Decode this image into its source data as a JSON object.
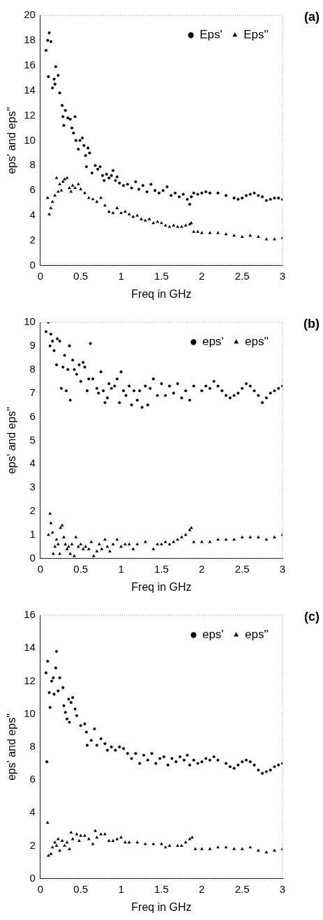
{
  "chart_data": [
    {
      "type": "scatter",
      "annotations": [
        "(a)"
      ],
      "xlabel": "Freq in GHz",
      "ylabel": "eps' and eps''",
      "xlim": [
        0,
        3
      ],
      "xticks": [
        0,
        0.5,
        1,
        1.5,
        2,
        2.5,
        3
      ],
      "ylim": [
        0,
        20
      ],
      "yticks": [
        0,
        2,
        4,
        6,
        8,
        10,
        12,
        14,
        16,
        18,
        20
      ],
      "grid": false,
      "legend": "top right",
      "series": [
        {
          "name": "Eps'",
          "color": "#000000",
          "marker": "circle",
          "x": [
            0.07,
            0.09,
            0.11,
            0.13,
            0.1,
            0.15,
            0.17,
            0.18,
            0.19,
            0.22,
            0.24,
            0.27,
            0.28,
            0.29,
            0.31,
            0.34,
            0.37,
            0.39,
            0.41,
            0.43,
            0.44,
            0.47,
            0.49,
            0.52,
            0.54,
            0.56,
            0.59,
            0.61,
            0.57,
            0.64,
            0.68,
            0.71,
            0.74,
            0.77,
            0.79,
            0.82,
            0.85,
            0.88,
            0.9,
            0.93,
            0.95,
            0.98,
            1.03,
            1.08,
            1.13,
            1.18,
            1.22,
            1.27,
            1.32,
            1.37,
            1.42,
            1.47,
            1.52,
            1.57,
            1.62,
            1.67,
            1.72,
            1.77,
            1.82,
            1.85,
            1.87,
            1.9,
            1.95,
            2.0,
            2.05,
            2.1,
            2.2,
            2.3,
            2.4,
            2.45,
            2.5,
            2.55,
            2.6,
            2.65,
            2.7,
            2.75,
            2.8,
            2.85,
            2.9,
            2.95,
            3.0
          ],
          "values": [
            17.2,
            18.0,
            18.6,
            17.9,
            15.1,
            14.2,
            14.9,
            14.5,
            15.9,
            15.2,
            13.8,
            12.8,
            11.9,
            11.2,
            12.4,
            11.8,
            11.7,
            11.0,
            10.6,
            11.9,
            10.0,
            9.3,
            10.0,
            10.2,
            9.6,
            8.8,
            9.4,
            9.0,
            7.9,
            7.4,
            8.0,
            7.7,
            7.9,
            7.2,
            6.8,
            7.3,
            7.0,
            7.2,
            7.6,
            6.8,
            7.1,
            6.6,
            6.4,
            6.5,
            6.2,
            6.7,
            6.1,
            6.4,
            5.9,
            6.5,
            6.0,
            5.8,
            6.0,
            6.3,
            5.6,
            5.8,
            5.5,
            5.7,
            5.3,
            4.9,
            5.5,
            5.8,
            5.7,
            5.8,
            5.9,
            5.8,
            5.8,
            5.6,
            5.4,
            5.3,
            5.4,
            5.6,
            5.7,
            5.8,
            5.6,
            5.5,
            5.2,
            5.3,
            5.4,
            5.4,
            5.3
          ]
        },
        {
          "name": "Eps''",
          "color": "#000000",
          "marker": "triangle",
          "x": [
            0.09,
            0.11,
            0.13,
            0.15,
            0.18,
            0.2,
            0.22,
            0.24,
            0.26,
            0.28,
            0.3,
            0.33,
            0.36,
            0.38,
            0.4,
            0.43,
            0.47,
            0.5,
            0.55,
            0.6,
            0.65,
            0.7,
            0.75,
            0.8,
            0.85,
            0.9,
            0.95,
            1.0,
            1.05,
            1.1,
            1.15,
            1.2,
            1.25,
            1.3,
            1.35,
            1.4,
            1.45,
            1.5,
            1.55,
            1.6,
            1.65,
            1.7,
            1.75,
            1.8,
            1.85,
            1.87,
            1.9,
            1.95,
            2.0,
            2.1,
            2.2,
            2.3,
            2.4,
            2.5,
            2.6,
            2.7,
            2.8,
            2.9,
            3.0
          ],
          "values": [
            5.4,
            4.1,
            4.6,
            5.1,
            5.6,
            7.0,
            5.9,
            6.5,
            6.0,
            6.7,
            6.9,
            7.0,
            6.2,
            5.9,
            6.4,
            6.2,
            6.5,
            6.1,
            5.8,
            5.4,
            5.3,
            5.1,
            5.4,
            4.8,
            4.3,
            4.2,
            4.6,
            4.2,
            4.3,
            4.1,
            3.9,
            4.0,
            3.7,
            3.6,
            3.7,
            3.4,
            3.5,
            3.4,
            3.2,
            3.1,
            3.2,
            3.1,
            3.1,
            3.2,
            3.3,
            3.4,
            2.7,
            2.7,
            2.6,
            2.6,
            2.6,
            2.5,
            2.4,
            2.3,
            2.4,
            2.3,
            2.1,
            2.1,
            2.2
          ]
        }
      ]
    },
    {
      "type": "scatter",
      "annotations": [
        "(b)"
      ],
      "xlabel": "Freq in GHz",
      "ylabel": "eps' and eps''",
      "xlim": [
        0,
        3
      ],
      "xticks": [
        0,
        0.5,
        1,
        1.5,
        2,
        2.5,
        3
      ],
      "ylim": [
        0,
        10
      ],
      "yticks": [
        0,
        1,
        2,
        3,
        4,
        5,
        6,
        7,
        8,
        9,
        10
      ],
      "grid": false,
      "legend": "top right",
      "series": [
        {
          "name": "eps'",
          "color": "#000000",
          "marker": "circle",
          "x": [
            0.07,
            0.1,
            0.12,
            0.13,
            0.15,
            0.17,
            0.2,
            0.21,
            0.24,
            0.26,
            0.28,
            0.3,
            0.32,
            0.34,
            0.36,
            0.37,
            0.4,
            0.42,
            0.45,
            0.48,
            0.5,
            0.53,
            0.55,
            0.58,
            0.6,
            0.62,
            0.65,
            0.7,
            0.72,
            0.75,
            0.78,
            0.8,
            0.83,
            0.85,
            0.88,
            0.92,
            0.95,
            0.98,
            1.0,
            1.03,
            1.06,
            1.1,
            1.13,
            1.16,
            1.2,
            1.23,
            1.26,
            1.3,
            1.33,
            1.36,
            1.4,
            1.45,
            1.5,
            1.55,
            1.6,
            1.65,
            1.7,
            1.75,
            1.8,
            1.85,
            1.9,
            2.0,
            2.05,
            2.1,
            2.15,
            2.2,
            2.25,
            2.3,
            2.35,
            2.4,
            2.45,
            2.5,
            2.55,
            2.6,
            2.65,
            2.7,
            2.75,
            2.8,
            2.85,
            2.9,
            2.95,
            3.0
          ],
          "values": [
            9.6,
            10.0,
            9.0,
            9.5,
            9.2,
            8.8,
            8.2,
            9.3,
            9.2,
            7.2,
            8.1,
            8.6,
            7.1,
            8.0,
            9.0,
            6.7,
            8.4,
            8.0,
            7.8,
            8.2,
            7.5,
            8.3,
            8.1,
            7.1,
            7.6,
            9.1,
            7.6,
            7.2,
            7.0,
            7.9,
            7.1,
            6.6,
            6.8,
            7.4,
            7.2,
            7.3,
            7.6,
            6.6,
            7.9,
            7.1,
            6.9,
            7.3,
            6.5,
            7.1,
            6.7,
            7.1,
            6.4,
            7.3,
            6.5,
            7.2,
            7.6,
            6.9,
            7.4,
            6.9,
            7.3,
            7.0,
            7.4,
            6.8,
            7.1,
            6.7,
            7.3,
            7.1,
            7.3,
            7.2,
            7.5,
            7.3,
            7.1,
            6.9,
            6.8,
            6.9,
            7.0,
            7.2,
            7.4,
            7.3,
            7.1,
            6.9,
            6.6,
            6.8,
            7.0,
            7.1,
            7.2,
            7.3
          ]
        },
        {
          "name": "eps''",
          "color": "#000000",
          "marker": "triangle",
          "x": [
            0.1,
            0.12,
            0.13,
            0.15,
            0.16,
            0.18,
            0.2,
            0.22,
            0.24,
            0.25,
            0.27,
            0.29,
            0.31,
            0.33,
            0.35,
            0.37,
            0.39,
            0.42,
            0.44,
            0.47,
            0.5,
            0.53,
            0.56,
            0.6,
            0.63,
            0.66,
            0.7,
            0.73,
            0.76,
            0.8,
            0.83,
            0.86,
            0.9,
            0.95,
            1.0,
            1.05,
            1.1,
            1.15,
            1.2,
            1.3,
            1.4,
            1.45,
            1.5,
            1.55,
            1.6,
            1.65,
            1.7,
            1.75,
            1.8,
            1.85,
            1.87,
            1.9,
            2.0,
            2.1,
            2.2,
            2.3,
            2.4,
            2.5,
            2.6,
            2.7,
            2.8,
            2.9,
            3.0
          ],
          "values": [
            1.0,
            1.9,
            1.5,
            1.1,
            0.2,
            0.5,
            0.8,
            0.6,
            0.2,
            1.3,
            1.4,
            0.9,
            0.6,
            0.4,
            0.5,
            0.2,
            0.6,
            0.1,
            0.9,
            0.5,
            0.6,
            0.4,
            0.5,
            0.4,
            0.7,
            0.1,
            0.3,
            0.6,
            0.4,
            0.8,
            0.5,
            0.3,
            0.6,
            0.8,
            0.5,
            0.6,
            0.6,
            0.4,
            0.6,
            0.7,
            0.4,
            0.6,
            0.6,
            0.7,
            0.6,
            0.7,
            0.8,
            0.9,
            1.0,
            1.2,
            1.3,
            0.7,
            0.7,
            0.7,
            0.8,
            0.8,
            0.8,
            0.9,
            0.9,
            0.9,
            0.8,
            0.9,
            1.0
          ]
        }
      ]
    },
    {
      "type": "scatter",
      "annotations": [
        "(c)"
      ],
      "xlabel": "Freq in GHz",
      "ylabel": "eps' and eps''",
      "xlim": [
        0,
        3
      ],
      "xticks": [
        0,
        0.5,
        1,
        1.5,
        2,
        2.5,
        3
      ],
      "ylim": [
        0,
        16
      ],
      "yticks": [
        0,
        2,
        4,
        6,
        8,
        10,
        12,
        14,
        16
      ],
      "grid": false,
      "legend": "top right",
      "series": [
        {
          "name": "eps'",
          "color": "#000000",
          "marker": "circle",
          "x": [
            0.07,
            0.08,
            0.09,
            0.11,
            0.12,
            0.14,
            0.16,
            0.17,
            0.19,
            0.2,
            0.22,
            0.24,
            0.28,
            0.29,
            0.31,
            0.33,
            0.35,
            0.36,
            0.38,
            0.4,
            0.43,
            0.45,
            0.5,
            0.55,
            0.57,
            0.58,
            0.63,
            0.67,
            0.7,
            0.75,
            0.8,
            0.83,
            0.88,
            0.93,
            0.98,
            1.03,
            1.08,
            1.13,
            1.18,
            1.23,
            1.28,
            1.33,
            1.38,
            1.43,
            1.48,
            1.53,
            1.58,
            1.63,
            1.68,
            1.73,
            1.78,
            1.82,
            1.85,
            1.9,
            1.95,
            2.0,
            2.05,
            2.1,
            2.15,
            2.2,
            2.3,
            2.35,
            2.4,
            2.45,
            2.5,
            2.55,
            2.6,
            2.65,
            2.7,
            2.75,
            2.8,
            2.85,
            2.9,
            2.95,
            3.0
          ],
          "values": [
            12.5,
            7.1,
            13.2,
            11.3,
            10.4,
            12.0,
            12.2,
            11.2,
            12.8,
            13.8,
            11.4,
            12.2,
            11.6,
            10.5,
            10.1,
            9.7,
            10.9,
            9.5,
            10.7,
            11.0,
            10.3,
            9.9,
            9.3,
            9.4,
            8.9,
            8.1,
            8.4,
            9.1,
            8.1,
            8.5,
            8.2,
            7.8,
            8.0,
            7.8,
            8.0,
            7.9,
            7.6,
            7.3,
            7.6,
            7.0,
            7.5,
            7.2,
            7.6,
            7.0,
            7.3,
            7.4,
            6.9,
            7.3,
            7.1,
            7.4,
            7.2,
            7.5,
            6.9,
            7.2,
            7.0,
            7.1,
            7.3,
            7.2,
            7.4,
            7.2,
            7.0,
            6.8,
            6.7,
            6.9,
            7.1,
            7.2,
            7.1,
            6.9,
            6.6,
            6.4,
            6.5,
            6.6,
            6.8,
            6.9,
            7.0
          ]
        },
        {
          "name": "eps''",
          "color": "#000000",
          "marker": "triangle",
          "x": [
            0.09,
            0.1,
            0.13,
            0.15,
            0.18,
            0.2,
            0.22,
            0.24,
            0.27,
            0.3,
            0.33,
            0.36,
            0.38,
            0.4,
            0.45,
            0.48,
            0.5,
            0.55,
            0.6,
            0.65,
            0.68,
            0.7,
            0.75,
            0.8,
            0.85,
            0.9,
            0.95,
            1.0,
            1.05,
            1.1,
            1.2,
            1.3,
            1.4,
            1.5,
            1.55,
            1.6,
            1.7,
            1.75,
            1.8,
            1.85,
            1.88,
            1.92,
            2.0,
            2.1,
            2.2,
            2.3,
            2.4,
            2.5,
            2.6,
            2.7,
            2.8,
            2.9,
            3.0
          ],
          "values": [
            3.4,
            1.4,
            1.5,
            1.9,
            2.2,
            2.0,
            2.4,
            1.7,
            2.3,
            2.0,
            2.2,
            1.8,
            2.8,
            2.4,
            2.7,
            2.3,
            2.6,
            2.6,
            2.4,
            2.1,
            2.9,
            2.5,
            2.7,
            2.7,
            2.3,
            2.3,
            2.4,
            2.5,
            2.2,
            2.2,
            2.2,
            2.1,
            2.1,
            2.1,
            1.9,
            2.0,
            2.0,
            2.0,
            2.2,
            2.4,
            2.5,
            1.8,
            1.8,
            1.8,
            1.9,
            1.9,
            1.8,
            1.8,
            1.9,
            1.7,
            1.6,
            1.7,
            1.8
          ]
        }
      ]
    }
  ]
}
